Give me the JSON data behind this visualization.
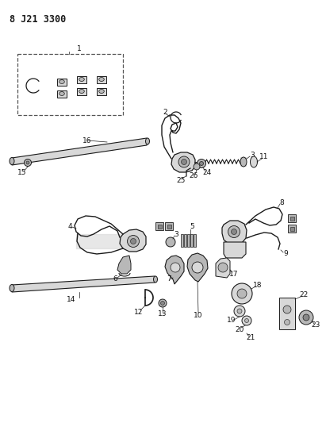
{
  "title": "8 J21 3300",
  "bg_color": "#ffffff",
  "lc": "#1a1a1a",
  "fig_w": 4.11,
  "fig_h": 5.33,
  "dpi": 100
}
